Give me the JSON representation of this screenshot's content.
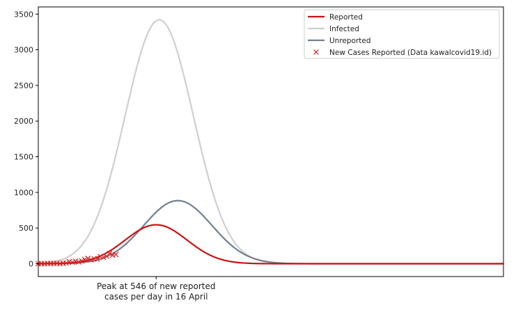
{
  "chart_data": {
    "type": "line",
    "title": "",
    "xlabel": "",
    "ylabel": "",
    "ylim": [
      -180,
      3600
    ],
    "xlim": [
      -25,
      125
    ],
    "yticks": [
      0,
      500,
      1000,
      1500,
      2000,
      2500,
      3000,
      3500
    ],
    "ytick_labels": [
      "0",
      "500",
      "1000",
      "1500",
      "2000",
      "2500",
      "3000",
      "3500"
    ],
    "xtick_label_lines": [
      "Peak at 546 of new reported",
      "cases per day in 16 April"
    ],
    "grid": false,
    "legend_position": "top-right",
    "series": [
      {
        "name": "Reported",
        "kind": "line",
        "color": "#cc1111",
        "peak_x": 13,
        "peak_y": 546,
        "sigma": 10
      },
      {
        "name": "Infected",
        "kind": "line",
        "color": "#cfcfcf",
        "peak_x": 14,
        "peak_y": 3420,
        "sigma": 11
      },
      {
        "name": "Unreported",
        "kind": "line",
        "color": "#708090",
        "peak_x": 20,
        "peak_y": 885,
        "sigma": 11
      },
      {
        "name": "New Cases Reported (Data kawalcovid19.id)",
        "kind": "scatter",
        "color": "#dd2222",
        "x": [
          -25,
          -24,
          -23,
          -22,
          -21,
          -20,
          -19,
          -18,
          -17,
          -16,
          -15,
          -14,
          -13,
          -12,
          -11,
          -10,
          -9,
          -8,
          -7,
          -6,
          -5,
          -4,
          -3,
          -2,
          -1,
          0
        ],
        "y": [
          0,
          2,
          0,
          5,
          3,
          4,
          6,
          2,
          8,
          10,
          30,
          20,
          35,
          25,
          40,
          60,
          75,
          55,
          70,
          65,
          100,
          90,
          105,
          145,
          120,
          130
        ]
      }
    ]
  }
}
